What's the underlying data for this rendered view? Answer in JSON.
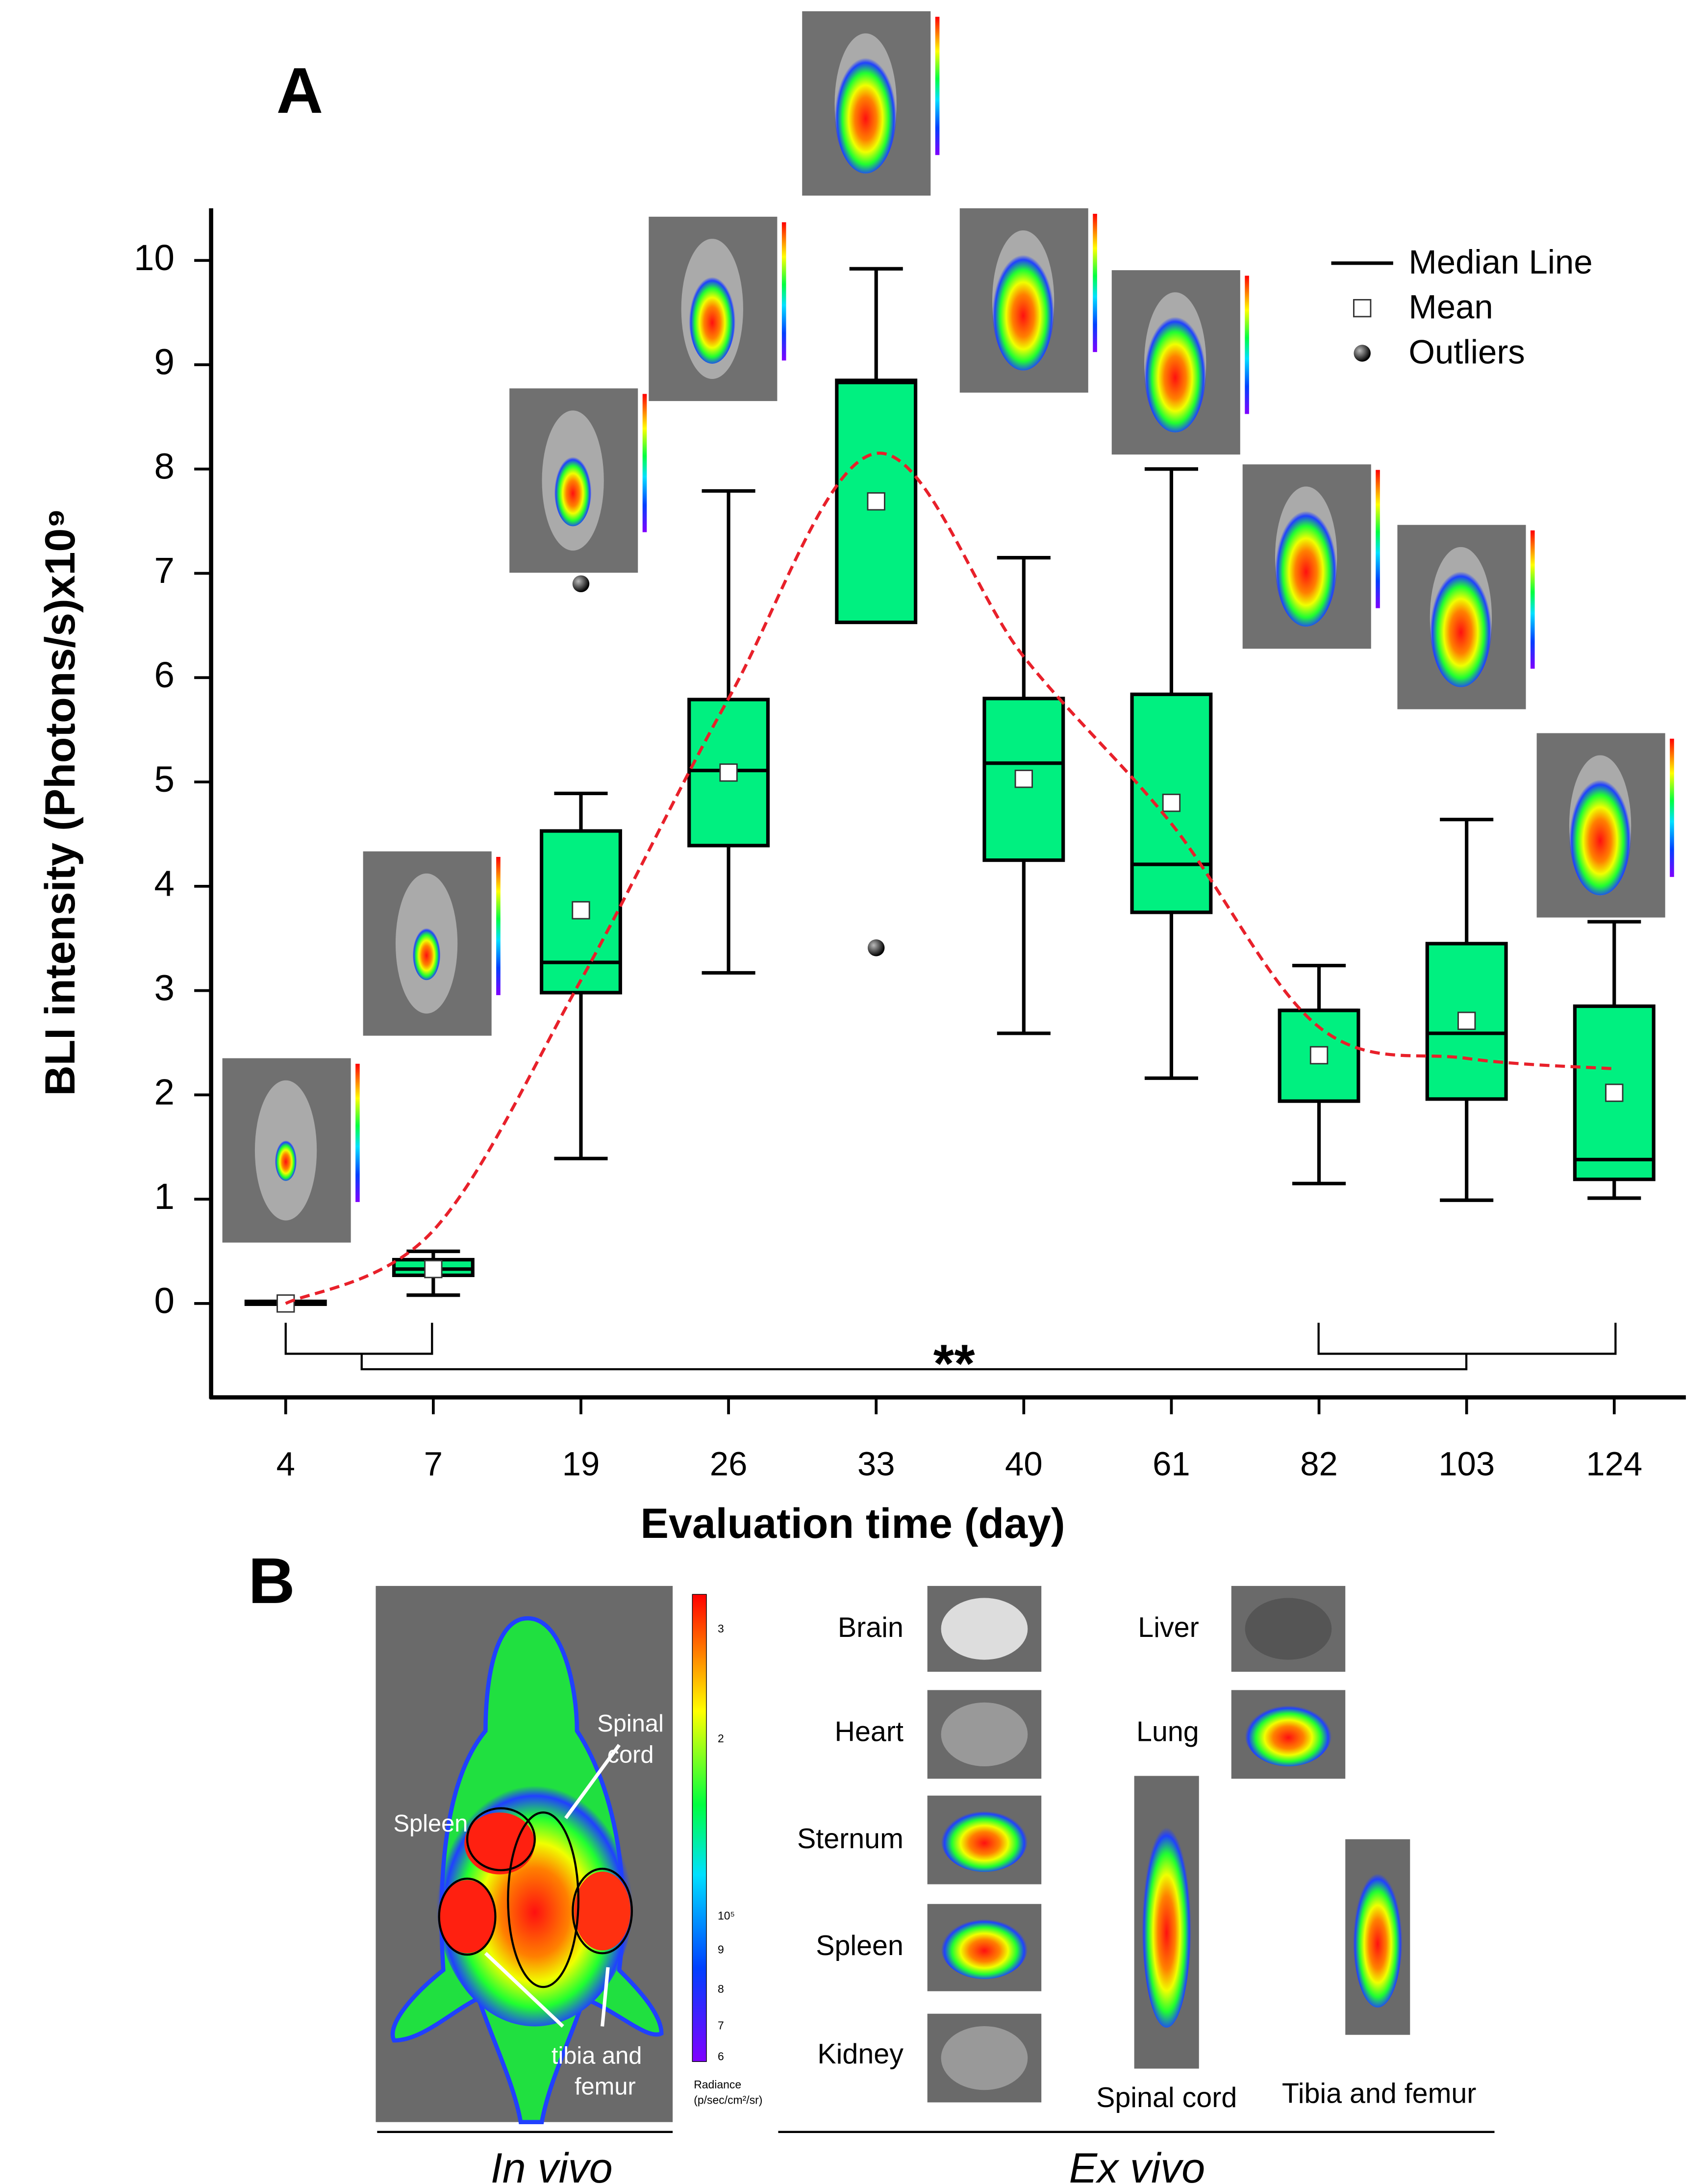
{
  "chart_data": {
    "type": "box",
    "panel_label": "A",
    "xlabel": "Evaluation time (day)",
    "ylabel": "BLI intensity (Photons/s)x10⁹",
    "categories": [
      "4",
      "7",
      "19",
      "26",
      "33",
      "40",
      "61",
      "82",
      "103",
      "124"
    ],
    "min": [
      0,
      0.08,
      1.39,
      3.17,
      7.03,
      2.59,
      2.16,
      1.15,
      0.99,
      1.01
    ],
    "q1": [
      0,
      0.27,
      2.98,
      4.39,
      6.53,
      4.25,
      3.75,
      1.94,
      1.96,
      1.19
    ],
    "median": [
      0,
      0.33,
      3.27,
      5.11,
      8.83,
      5.18,
      4.21,
      2.81,
      2.59,
      1.38
    ],
    "q3": [
      0.02,
      0.42,
      4.53,
      5.79,
      8.85,
      5.8,
      5.84,
      2.81,
      3.45,
      2.85
    ],
    "max": [
      0.02,
      0.5,
      4.89,
      7.79,
      9.92,
      7.15,
      8.0,
      3.24,
      4.64,
      3.66
    ],
    "mean": [
      0,
      0.33,
      3.77,
      5.09,
      7.69,
      5.03,
      4.8,
      2.38,
      2.71,
      2.02
    ],
    "outliers": [
      [],
      [],
      [
        6.9
      ],
      [],
      [
        3.41
      ],
      [],
      [],
      [],
      [],
      []
    ],
    "trend": [
      0,
      0.7,
      3.1,
      5.8,
      8.15,
      6.2,
      4.6,
      2.65,
      2.35,
      2.25
    ],
    "color": "#00f080",
    "trend_color": "#e8202a",
    "ylim": [
      -0.9,
      10.5
    ],
    "yticks": [
      0,
      1,
      2,
      3,
      4,
      5,
      6,
      7,
      8,
      9,
      10
    ],
    "legend": [
      "Median Line",
      "Mean",
      "Outliers"
    ],
    "legend_position": "upper right",
    "annotation": "**"
  },
  "panel_b": {
    "panel_label": "B",
    "in_vivo": "In vivo",
    "ex_vivo": "Ex vivo",
    "in_vivo_labels": {
      "spleen": "Spleen",
      "spinal_cord": [
        "Spinal",
        "cord"
      ],
      "tibia_femur": [
        "tibia and",
        "femur"
      ]
    },
    "colorbar_labels": [
      "3",
      "2",
      "10⁵",
      "9",
      "8",
      "7",
      "6"
    ],
    "colorbar_title": [
      "Radiance",
      "(p/sec/cm²/sr)"
    ],
    "organs": [
      "Brain",
      "Heart",
      "Sternum",
      "Spleen",
      "Kidney",
      "Liver",
      "Lung",
      "Spinal cord",
      "Tibia and femur"
    ]
  }
}
